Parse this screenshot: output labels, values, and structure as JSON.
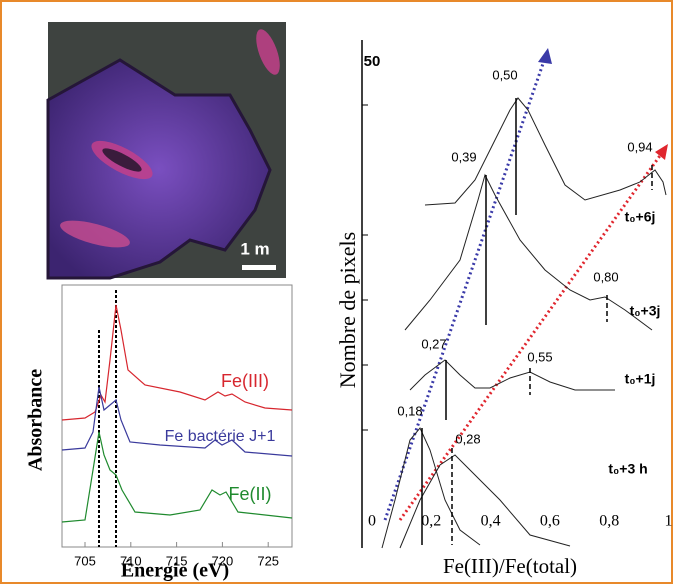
{
  "image": {
    "scale_label": "1   m"
  },
  "left_plot": {
    "y_label": "Absorbance",
    "x_label": "Énergie (eV)",
    "x_ticks": [
      "705",
      "710",
      "715",
      "720",
      "725"
    ],
    "curve_labels": [
      "Fe(III)",
      "Fe bactérie J+1",
      "Fe(II)"
    ]
  },
  "right_plot": {
    "y_label": "Nombre de pixels",
    "x_label": "Fe(III)/Fe(total)",
    "y_tick_label": "50",
    "x_ticks": [
      "0",
      "0,2",
      "0,4",
      "0,6",
      "0,8",
      "1"
    ],
    "peak_labels": [
      "0,18",
      "0,28",
      "0,27",
      "0,55",
      "0,39",
      "0,80",
      "0,50",
      "0,94"
    ],
    "time_labels": [
      "t₀+3 h",
      "t₀+1j",
      "t₀+3j",
      "t₀+6j"
    ]
  }
}
